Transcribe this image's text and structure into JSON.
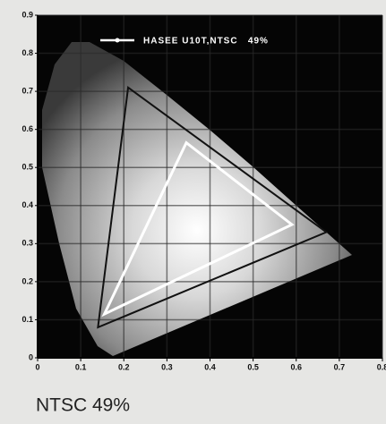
{
  "chart_data": {
    "type": "chromaticity",
    "xlim": [
      0,
      0.8
    ],
    "ylim": [
      0,
      0.9
    ],
    "xticks": [
      0,
      0.1,
      0.2,
      0.3,
      0.4,
      0.5,
      0.6,
      0.7,
      0.8
    ],
    "yticks": [
      0,
      0.1,
      0.2,
      0.3,
      0.4,
      0.5,
      0.6,
      0.7,
      0.8,
      0.9
    ],
    "grid": true,
    "series": [
      {
        "name": "HASEE U10T,NTSC   49%",
        "color": "#ffffff",
        "x": [
          0.345,
          0.59,
          0.155
        ],
        "values": [
          0.565,
          0.35,
          0.115
        ]
      },
      {
        "color": "#111111",
        "x": [
          0.21,
          0.67,
          0.14
        ],
        "values": [
          0.71,
          0.33,
          0.08
        ]
      }
    ],
    "caption": "NTSC 49%"
  }
}
